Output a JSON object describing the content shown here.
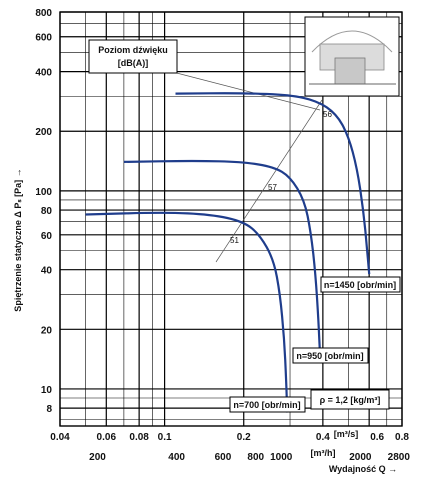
{
  "colors": {
    "curve": "#1f3d8c",
    "grid": "#000000",
    "fan_box": "#bdbdbd"
  },
  "chart_data": {
    "type": "line",
    "xscale": "log",
    "yscale": "log",
    "title": "",
    "ylabel": "Spiętrzenie statyczne Δ Pₛ [Pa] →",
    "xlabel": "Wydajność Q →",
    "xlim": [
      0.04,
      0.8
    ],
    "ylim": [
      6.5,
      800
    ],
    "xticks_top_label": [
      "0.04",
      "0.06",
      "0.08",
      "0.1",
      "0.2",
      "0.4",
      "0.6",
      "0.8"
    ],
    "xticks_top_value": [
      0.04,
      0.06,
      0.08,
      0.1,
      0.2,
      0.4,
      0.6,
      0.8
    ],
    "x_unit_top": "[m³/s]",
    "xticks_bottom_label": [
      "200",
      "400",
      "600",
      "800",
      "1000",
      "2000",
      "2800"
    ],
    "xticks_bottom_value": [
      200,
      400,
      600,
      800,
      1000,
      2000,
      2800
    ],
    "x_unit_bottom": "[m³/h]",
    "yticks_label": [
      "800",
      "600",
      "400",
      "200",
      "100",
      "80",
      "60",
      "40",
      "20",
      "10",
      "8"
    ],
    "yticks_value": [
      800,
      600,
      400,
      200,
      100,
      80,
      60,
      40,
      20,
      10,
      8
    ],
    "series": [
      {
        "name": "n=1450 [obr/min]",
        "x": [
          0.11,
          0.2,
          0.3,
          0.38,
          0.45,
          0.5,
          0.54,
          0.57,
          0.59,
          0.6
        ],
        "y": [
          310,
          312,
          305,
          285,
          245,
          190,
          130,
          80,
          50,
          38
        ]
      },
      {
        "name": "n=950 [obr/min]",
        "x": [
          0.07,
          0.13,
          0.2,
          0.26,
          0.3,
          0.34,
          0.36,
          0.375,
          0.385,
          0.39
        ],
        "y": [
          140,
          142,
          140,
          132,
          118,
          90,
          62,
          38,
          22,
          15
        ]
      },
      {
        "name": "n=700 [obr/min]",
        "x": [
          0.05,
          0.1,
          0.15,
          0.2,
          0.23,
          0.26,
          0.275,
          0.285,
          0.29,
          0.293
        ],
        "y": [
          76,
          78,
          76,
          70,
          60,
          45,
          30,
          18,
          11,
          7.6
        ]
      }
    ],
    "annotations": {
      "sound_box_line1": "Poziom dźwięku",
      "sound_box_line2": "[dB(A)]",
      "sound_levels": [
        "56",
        "57",
        "51"
      ],
      "density": "ρ = 1,2 [kg/m³]"
    }
  }
}
